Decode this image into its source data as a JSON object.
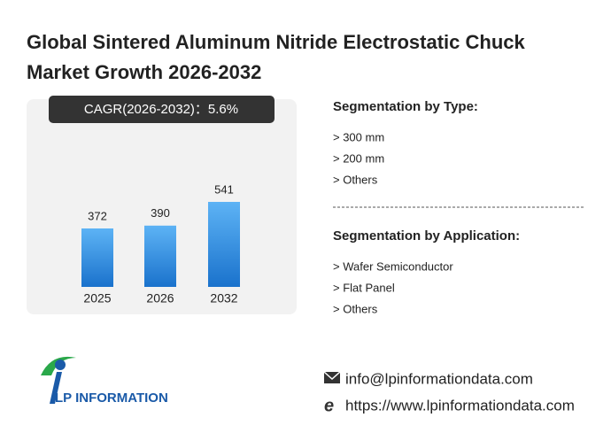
{
  "header": {
    "title_lines": [
      "Global Sintered Aluminum Nitride Electrostatic Chuck",
      "Market Growth 2026-2032"
    ]
  },
  "chart_data": {
    "type": "bar",
    "annotation": "CAGR(2026-2032)：5.6%",
    "categories": [
      "2025",
      "2026",
      "2032"
    ],
    "values": [
      372,
      390,
      541
    ],
    "color": "#1a72cc"
  },
  "segmentation": [
    {
      "heading": "Segmentation by Type:",
      "items": [
        "> 300 mm",
        "> 200 mm",
        "> Others"
      ]
    },
    {
      "heading": "Segmentation by Application:",
      "items": [
        "> Wafer Semiconductor",
        "> Flat Panel",
        "> Others"
      ]
    }
  ],
  "logo": {
    "text": "LP INFORMATION"
  },
  "contact": {
    "email": "info@lpinformationdata.com",
    "website": "https://www.lpinformationdata.com"
  }
}
